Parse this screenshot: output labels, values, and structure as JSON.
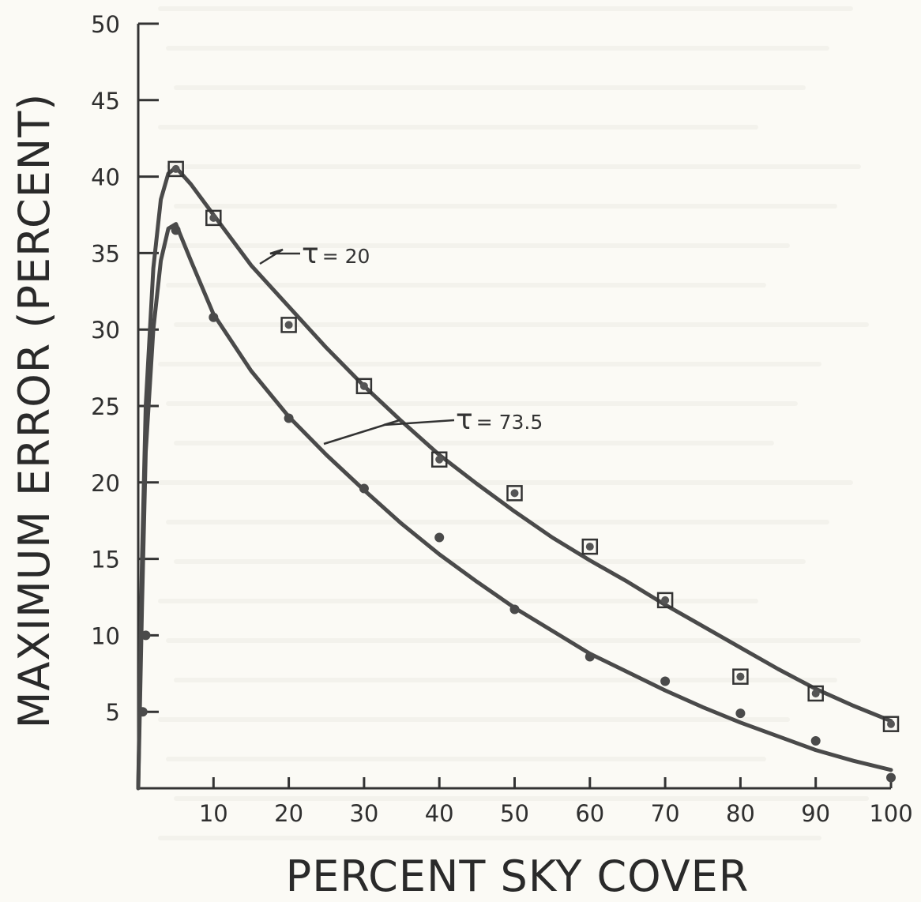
{
  "chart_data": {
    "type": "line",
    "title": "",
    "xlabel": "PERCENT SKY COVER",
    "ylabel": "MAXIMUM ERROR (PERCENT)",
    "xlim": [
      0,
      100
    ],
    "ylim": [
      0,
      50
    ],
    "x_ticks": [
      10,
      20,
      30,
      40,
      50,
      60,
      70,
      80,
      90,
      100
    ],
    "y_ticks": [
      5,
      10,
      15,
      20,
      25,
      30,
      35,
      40,
      45,
      50
    ],
    "grid": false,
    "series": [
      {
        "name": "τ = 20",
        "marker": "square-dot",
        "curve": [
          [
            0,
            0
          ],
          [
            0.5,
            15
          ],
          [
            1,
            25
          ],
          [
            2,
            34
          ],
          [
            3,
            38.5
          ],
          [
            4,
            40.2
          ],
          [
            5,
            40.6
          ],
          [
            7,
            39.5
          ],
          [
            10,
            37.5
          ],
          [
            15,
            34.2
          ],
          [
            20,
            31.5
          ],
          [
            25,
            28.8
          ],
          [
            30,
            26.3
          ],
          [
            35,
            24.0
          ],
          [
            40,
            21.8
          ],
          [
            45,
            19.9
          ],
          [
            50,
            18.1
          ],
          [
            55,
            16.4
          ],
          [
            60,
            14.9
          ],
          [
            65,
            13.5
          ],
          [
            70,
            12.0
          ],
          [
            75,
            10.6
          ],
          [
            80,
            9.2
          ],
          [
            85,
            7.8
          ],
          [
            90,
            6.5
          ],
          [
            95,
            5.4
          ],
          [
            100,
            4.4
          ]
        ],
        "points": [
          [
            5,
            40.5
          ],
          [
            10,
            37.3
          ],
          [
            20,
            30.3
          ],
          [
            30,
            26.3
          ],
          [
            40,
            21.5
          ],
          [
            50,
            19.3
          ],
          [
            60,
            15.8
          ],
          [
            70,
            12.3
          ],
          [
            80,
            7.3
          ],
          [
            90,
            6.2
          ],
          [
            100,
            4.2
          ]
        ]
      },
      {
        "name": "τ = 73.5",
        "marker": "dot",
        "curve": [
          [
            0,
            0
          ],
          [
            0.5,
            12
          ],
          [
            1,
            22
          ],
          [
            2,
            30
          ],
          [
            3,
            34.5
          ],
          [
            4,
            36.6
          ],
          [
            5,
            36.9
          ],
          [
            7,
            34.5
          ],
          [
            10,
            31.0
          ],
          [
            15,
            27.3
          ],
          [
            20,
            24.3
          ],
          [
            25,
            21.8
          ],
          [
            30,
            19.5
          ],
          [
            35,
            17.3
          ],
          [
            40,
            15.3
          ],
          [
            45,
            13.5
          ],
          [
            50,
            11.8
          ],
          [
            55,
            10.3
          ],
          [
            60,
            8.8
          ],
          [
            65,
            7.6
          ],
          [
            70,
            6.4
          ],
          [
            75,
            5.3
          ],
          [
            80,
            4.3
          ],
          [
            85,
            3.4
          ],
          [
            90,
            2.5
          ],
          [
            95,
            1.8
          ],
          [
            100,
            1.2
          ]
        ],
        "points": [
          [
            1,
            10
          ],
          [
            0.6,
            5
          ],
          [
            5,
            36.5
          ],
          [
            10,
            30.8
          ],
          [
            20,
            24.2
          ],
          [
            30,
            19.6
          ],
          [
            40,
            16.4
          ],
          [
            50,
            11.7
          ],
          [
            60,
            8.6
          ],
          [
            70,
            7.0
          ],
          [
            80,
            4.9
          ],
          [
            90,
            3.1
          ],
          [
            100,
            0.7
          ]
        ]
      }
    ],
    "annotations": [
      {
        "label_symbol": "τ",
        "label_value": "= 20",
        "series": "τ = 20"
      },
      {
        "label_symbol": "τ",
        "label_value": "= 73.5",
        "series": "τ = 73.5"
      }
    ]
  }
}
